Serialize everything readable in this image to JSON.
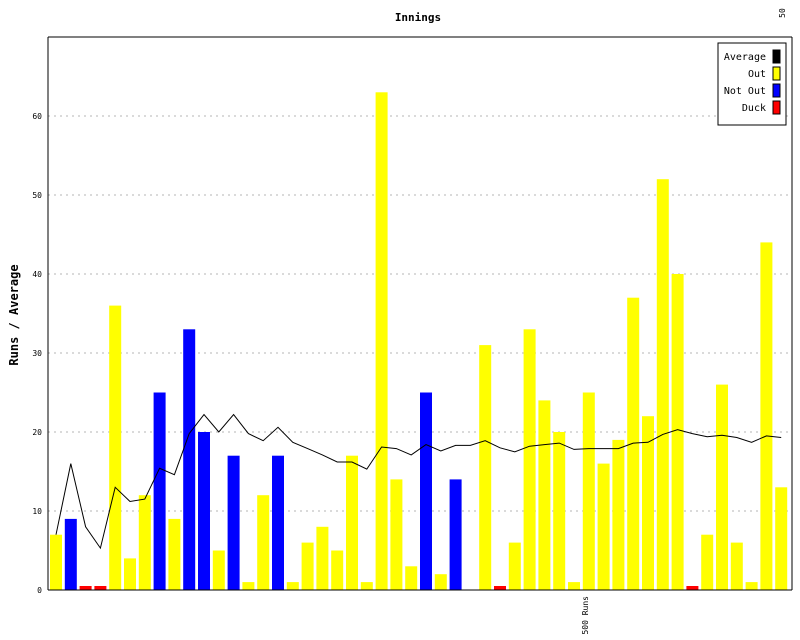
{
  "chart_data": {
    "type": "bar",
    "title": "Innings",
    "xlabel": "",
    "ylabel": "Runs / Average",
    "ylim": [
      0,
      70
    ],
    "yticks": [
      0,
      10,
      20,
      30,
      40,
      50,
      60
    ],
    "grid": true,
    "legend_position": "top-right",
    "top_axis_label": "50",
    "milestone_label": "500 Runs",
    "milestone_after_innings": 36,
    "colors": {
      "Average": "#000000",
      "Out": "#ffff00",
      "Not Out": "#0000ff",
      "Duck": "#ff0000"
    },
    "legend": [
      "Average",
      "Out",
      "Not Out",
      "Duck"
    ],
    "innings": [
      {
        "runs": 7,
        "status": "Out"
      },
      {
        "runs": 9,
        "status": "Not Out"
      },
      {
        "runs": 0,
        "status": "Duck"
      },
      {
        "runs": 0,
        "status": "Duck"
      },
      {
        "runs": 36,
        "status": "Out"
      },
      {
        "runs": 4,
        "status": "Out"
      },
      {
        "runs": 12,
        "status": "Out"
      },
      {
        "runs": 25,
        "status": "Not Out"
      },
      {
        "runs": 9,
        "status": "Out"
      },
      {
        "runs": 33,
        "status": "Not Out"
      },
      {
        "runs": 20,
        "status": "Not Out"
      },
      {
        "runs": 5,
        "status": "Out"
      },
      {
        "runs": 17,
        "status": "Not Out"
      },
      {
        "runs": 1,
        "status": "Out"
      },
      {
        "runs": 12,
        "status": "Out"
      },
      {
        "runs": 17,
        "status": "Not Out"
      },
      {
        "runs": 1,
        "status": "Out"
      },
      {
        "runs": 6,
        "status": "Out"
      },
      {
        "runs": 8,
        "status": "Out"
      },
      {
        "runs": 5,
        "status": "Out"
      },
      {
        "runs": 17,
        "status": "Out"
      },
      {
        "runs": 1,
        "status": "Out"
      },
      {
        "runs": 63,
        "status": "Out"
      },
      {
        "runs": 14,
        "status": "Out"
      },
      {
        "runs": 3,
        "status": "Out"
      },
      {
        "runs": 25,
        "status": "Not Out"
      },
      {
        "runs": 2,
        "status": "Out"
      },
      {
        "runs": 14,
        "status": "Not Out"
      },
      {
        "runs": 0,
        "status": "None"
      },
      {
        "runs": 31,
        "status": "Out"
      },
      {
        "runs": 0,
        "status": "Duck"
      },
      {
        "runs": 6,
        "status": "Out"
      },
      {
        "runs": 33,
        "status": "Out"
      },
      {
        "runs": 24,
        "status": "Out"
      },
      {
        "runs": 20,
        "status": "Out"
      },
      {
        "runs": 1,
        "status": "Out"
      },
      {
        "runs": 25,
        "status": "Out"
      },
      {
        "runs": 16,
        "status": "Out"
      },
      {
        "runs": 19,
        "status": "Out"
      },
      {
        "runs": 37,
        "status": "Out"
      },
      {
        "runs": 22,
        "status": "Out"
      },
      {
        "runs": 52,
        "status": "Out"
      },
      {
        "runs": 40,
        "status": "Out"
      },
      {
        "runs": 0,
        "status": "Duck"
      },
      {
        "runs": 7,
        "status": "Out"
      },
      {
        "runs": 26,
        "status": "Out"
      },
      {
        "runs": 6,
        "status": "Out"
      },
      {
        "runs": 1,
        "status": "Out"
      },
      {
        "runs": 44,
        "status": "Out"
      },
      {
        "runs": 13,
        "status": "Out"
      }
    ],
    "average": [
      7,
      16,
      8,
      5.3,
      13,
      11.2,
      11.5,
      15.4,
      14.6,
      19.8,
      22.2,
      20,
      22.2,
      19.8,
      18.9,
      20.6,
      18.7,
      17.9,
      17.1,
      16.2,
      16.2,
      15.3,
      18.1,
      17.9,
      17.1,
      18.4,
      17.6,
      18.3,
      18.3,
      18.9,
      18,
      17.5,
      18.2,
      18.4,
      18.6,
      17.8,
      17.9,
      17.9,
      17.9,
      18.6,
      18.7,
      19.7,
      20.3,
      19.8,
      19.4,
      19.6,
      19.3,
      18.7,
      19.5,
      19.3
    ]
  }
}
